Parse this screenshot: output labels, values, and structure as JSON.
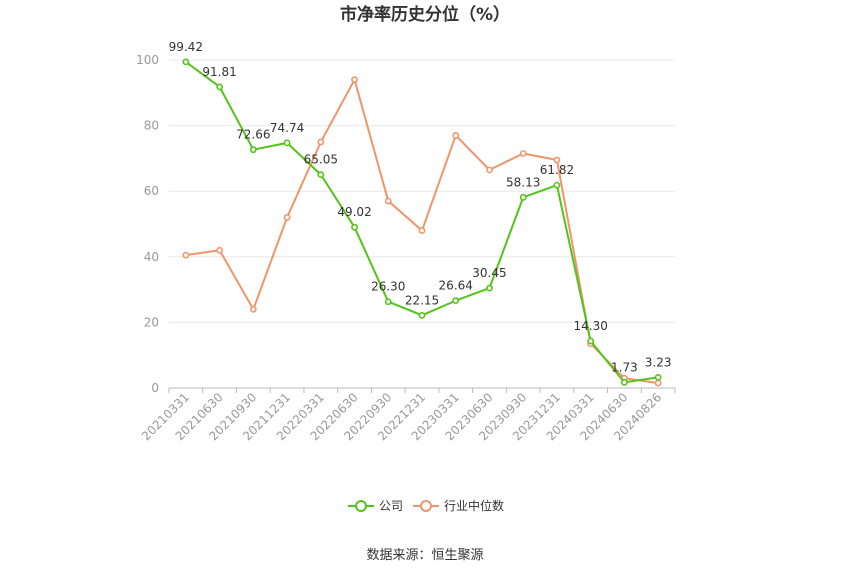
{
  "chart_data": {
    "type": "line",
    "title": "市净率历史分位（%）",
    "categories": [
      "20210331",
      "20210630",
      "20210930",
      "20211231",
      "20220331",
      "20220630",
      "20220930",
      "20221231",
      "20230331",
      "20230630",
      "20230930",
      "20231231",
      "20240331",
      "20240630",
      "20240826"
    ],
    "series": [
      {
        "name": "公司",
        "color": "#52c41a",
        "values": [
          99.42,
          91.81,
          72.66,
          74.74,
          65.05,
          49.02,
          26.3,
          22.15,
          26.64,
          30.45,
          58.13,
          61.82,
          14.3,
          1.73,
          3.23
        ],
        "labels": [
          "99.42",
          "91.81",
          "72.66",
          "74.74",
          "65.05",
          "49.02",
          "26.30",
          "22.15",
          "26.64",
          "30.45",
          "58.13",
          "61.82",
          "14.30",
          "1.73",
          "3.23"
        ]
      },
      {
        "name": "行业中位数",
        "color": "#f0956a",
        "values": [
          40.5,
          42,
          24,
          52,
          75,
          94,
          57,
          48,
          77,
          66.5,
          71.5,
          69.5,
          13.5,
          3,
          1.5
        ]
      }
    ],
    "yticks": [
      "0",
      "20",
      "40",
      "60",
      "80",
      "100"
    ],
    "ylim": [
      0,
      100
    ],
    "grid": true,
    "legend_position": "bottom"
  },
  "source_text": "数据来源：恒生聚源"
}
